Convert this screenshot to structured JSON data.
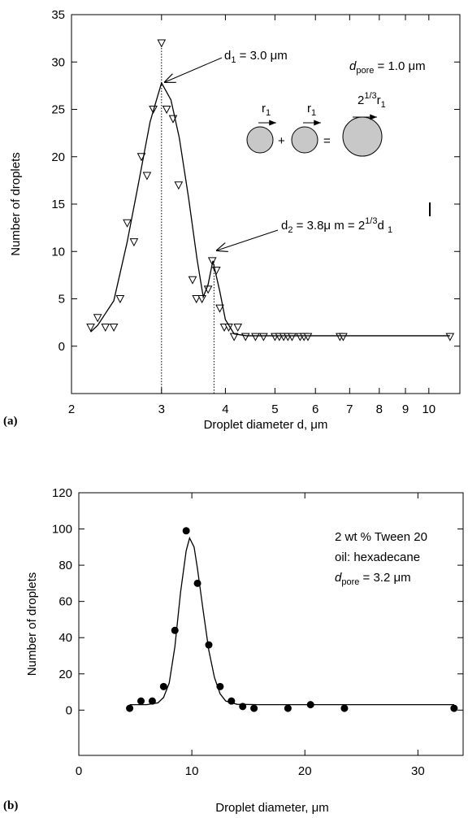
{
  "chart_data": [
    {
      "type": "scatter",
      "panel_label": "(a)",
      "xlabel": "Droplet diameter  d,  μm",
      "ylabel": "Number of droplets",
      "xscale": "log",
      "xlim": [
        2,
        11.5
      ],
      "xticks": [
        2,
        3,
        4,
        5,
        6,
        7,
        8,
        9,
        10
      ],
      "ylim": [
        -5,
        35
      ],
      "yticks": [
        0,
        5,
        10,
        15,
        20,
        25,
        30,
        35
      ],
      "series": [
        {
          "marker": "triangle-down",
          "color": "#000000",
          "x": [
            2.18,
            2.25,
            2.33,
            2.42,
            2.49,
            2.57,
            2.65,
            2.74,
            2.81,
            2.89,
            3.0,
            3.07,
            3.16,
            3.24,
            3.45,
            3.51,
            3.6,
            3.7,
            3.77,
            3.84,
            3.9,
            3.98,
            4.06,
            4.16,
            4.23,
            4.38,
            4.58,
            4.75,
            5.0,
            5.1,
            5.2,
            5.3,
            5.4,
            5.6,
            5.7,
            5.8,
            6.7,
            6.8,
            11
          ],
          "values": [
            2,
            3,
            2,
            2,
            5,
            13,
            11,
            20,
            18,
            25,
            32,
            25,
            24,
            17,
            7,
            5,
            5,
            6,
            9,
            8,
            4,
            2,
            2,
            1,
            2,
            1,
            1,
            1,
            1,
            1,
            1,
            1,
            1,
            1,
            1,
            1,
            1,
            1,
            1
          ]
        },
        {
          "marker": "none",
          "line": true,
          "color": "#000000",
          "x": [
            2.18,
            2.25,
            2.42,
            2.57,
            2.7,
            2.85,
            3.0,
            3.13,
            3.25,
            3.39,
            3.52,
            3.62,
            3.7,
            3.78,
            3.9,
            4.0,
            4.16,
            4.4,
            11
          ],
          "values": [
            1.5,
            2.2,
            4.8,
            11,
            17,
            23.7,
            27.8,
            26,
            22,
            15.6,
            9.2,
            5.2,
            6.5,
            9,
            5.8,
            2.8,
            1.3,
            1.1,
            1.1
          ]
        }
      ],
      "vlines": [
        {
          "x": 3.0,
          "y": 32
        },
        {
          "x": 3.8,
          "y": 9
        }
      ],
      "annotations": [
        {
          "parts": [
            {
              "t": "d",
              "italic": true
            },
            {
              "t": "pore",
              "sub": true
            },
            {
              "t": " = 1.0 μm"
            }
          ]
        },
        {
          "parts": [
            {
              "t": "d"
            },
            {
              "t": "1",
              "sub": true
            },
            {
              "t": " = 3.0 μm"
            }
          ]
        },
        {
          "parts": [
            {
              "t": "d"
            },
            {
              "t": "2",
              "sub": true
            },
            {
              "t": " = 3.8μ m = 2"
            },
            {
              "t": "1/3",
              "sup": true
            },
            {
              "t": "d "
            },
            {
              "t": "1",
              "sub": true
            }
          ]
        },
        {
          "parts": [
            {
              "t": "r"
            },
            {
              "t": "1",
              "sub": true
            }
          ]
        },
        {
          "parts": [
            {
              "t": "r"
            },
            {
              "t": "1",
              "sub": true
            }
          ]
        },
        {
          "parts": [
            {
              "t": "2"
            },
            {
              "t": "1/3",
              "sup": true
            },
            {
              "t": "r"
            },
            {
              "t": "1",
              "sub": true
            }
          ]
        },
        {
          "parts": [
            {
              "t": "+"
            }
          ]
        },
        {
          "parts": [
            {
              "t": "="
            }
          ]
        }
      ]
    },
    {
      "type": "scatter",
      "panel_label": "(b)",
      "xlabel": "Droplet diameter, μm",
      "ylabel": "Number of droplets",
      "xscale": "linear",
      "xlim": [
        0,
        34
      ],
      "xticks": [
        0,
        10,
        20,
        30
      ],
      "ylim": [
        -25,
        120
      ],
      "yticks": [
        0,
        20,
        40,
        60,
        80,
        100,
        120
      ],
      "series": [
        {
          "marker": "circle",
          "color": "#000000",
          "x": [
            4.5,
            5.5,
            6.5,
            7.5,
            8.5,
            9.5,
            10.5,
            11.5,
            12.5,
            13.5,
            14.5,
            15.5,
            18.5,
            20.5,
            23.5,
            33.2
          ],
          "values": [
            1,
            5,
            5,
            13,
            44,
            99,
            70,
            36,
            13,
            5,
            2,
            1,
            1,
            3,
            1,
            1
          ]
        },
        {
          "marker": "none",
          "line": true,
          "color": "#000000",
          "x": [
            4.5,
            6,
            7,
            7.5,
            8,
            8.5,
            9,
            9.5,
            9.8,
            10.2,
            10.5,
            11,
            11.5,
            12,
            12.5,
            13,
            14,
            16,
            20,
            33.2
          ],
          "values": [
            3,
            3,
            4,
            7,
            15,
            35,
            65,
            88,
            95,
            90,
            78,
            55,
            33,
            18,
            9,
            5,
            3.2,
            3,
            3,
            3
          ]
        }
      ],
      "annotations": [
        {
          "parts": [
            {
              "t": "2 wt % Tween 20"
            }
          ]
        },
        {
          "parts": [
            {
              "t": "oil: hexadecane"
            }
          ]
        },
        {
          "parts": [
            {
              "t": "d",
              "italic": true
            },
            {
              "t": "pore",
              "sub": true
            },
            {
              "t": " = 3.2 μm"
            }
          ]
        }
      ]
    }
  ]
}
